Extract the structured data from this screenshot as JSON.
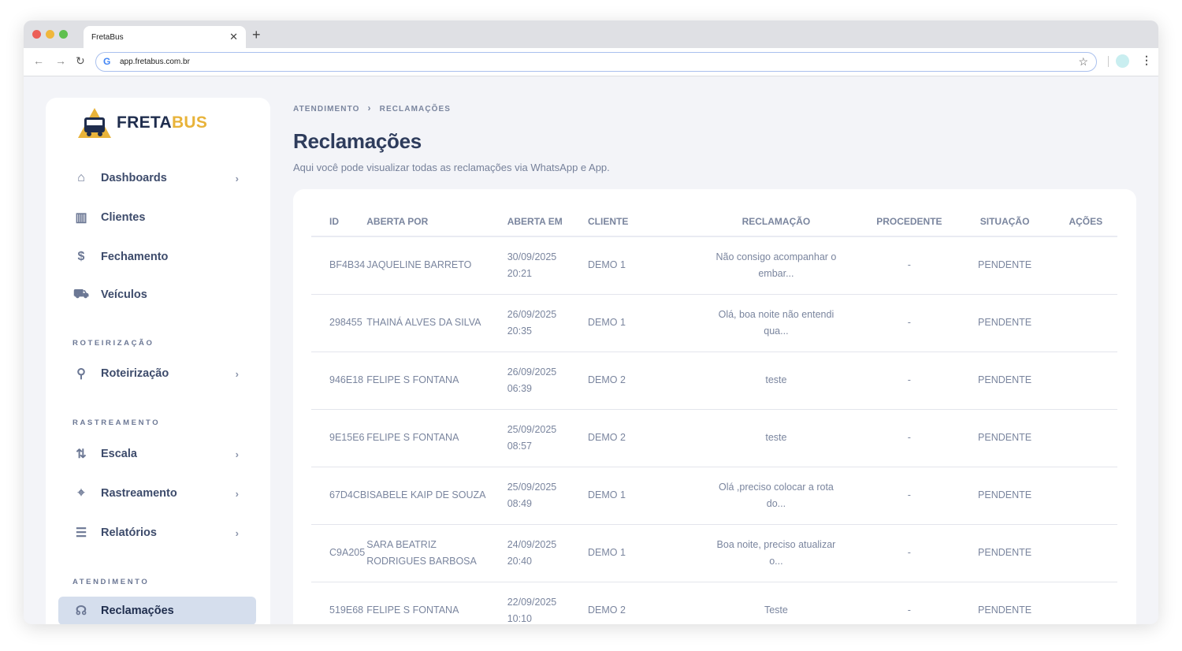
{
  "browser": {
    "tab_title": "FretaBus",
    "url": "app.fretabus.com.br"
  },
  "logo": {
    "text_a": "FRETA",
    "text_b": "BUS"
  },
  "sidebar": {
    "items": [
      {
        "label": "Dashboards",
        "icon": "home-icon",
        "chevron": true
      },
      {
        "label": "Clientes",
        "icon": "building-icon",
        "chevron": false
      },
      {
        "label": "Fechamento",
        "icon": "dollar-icon",
        "chevron": false
      },
      {
        "label": "Veículos",
        "icon": "vehicles-icon",
        "chevron": false
      }
    ],
    "sections": [
      {
        "title": "ROTEIRIZAÇÃO",
        "items": [
          {
            "label": "Roteirização",
            "icon": "route-icon"
          }
        ]
      },
      {
        "title": "RASTREAMENTO",
        "items": [
          {
            "label": "Escala",
            "icon": "repeat-icon"
          },
          {
            "label": "Rastreamento",
            "icon": "location-icon"
          },
          {
            "label": "Relatórios",
            "icon": "report-icon"
          }
        ]
      },
      {
        "title": "ATENDIMENTO",
        "items": [
          {
            "label": "Reclamações",
            "icon": "support-icon"
          }
        ]
      }
    ]
  },
  "breadcrumb": [
    "ATENDIMENTO",
    "RECLAMAÇÕES"
  ],
  "page": {
    "title": "Reclamações",
    "subtitle": "Aqui você pode visualizar todas as reclamações via WhatsApp e App."
  },
  "table": {
    "headers": [
      "ID",
      "ABERTA POR",
      "ABERTA EM",
      "CLIENTE",
      "RECLAMAÇÃO",
      "PROCEDENTE",
      "SITUAÇÃO",
      "AÇÕES"
    ],
    "rows": [
      {
        "id": "BF4B34",
        "by": "JAQUELINE BARRETO",
        "date": "30/09/2025",
        "time": "20:21",
        "client": "DEMO 1",
        "text": "Não consigo acompanhar o embar...",
        "proc": "-",
        "status": "PENDENTE"
      },
      {
        "id": "298455",
        "by": "THAINÁ ALVES DA SILVA",
        "date": "26/09/2025",
        "time": "20:35",
        "client": "DEMO 1",
        "text": "Olá, boa noite não entendi qua...",
        "proc": "-",
        "status": "PENDENTE"
      },
      {
        "id": "946E18",
        "by": "FELIPE S FONTANA",
        "date": "26/09/2025",
        "time": "06:39",
        "client": "DEMO 2",
        "text": "teste",
        "proc": "-",
        "status": "PENDENTE"
      },
      {
        "id": "9E15E6",
        "by": "FELIPE S FONTANA",
        "date": "25/09/2025",
        "time": "08:57",
        "client": "DEMO 2",
        "text": "teste",
        "proc": "-",
        "status": "PENDENTE"
      },
      {
        "id": "67D4CB",
        "by": "ISABELE KAIP DE SOUZA",
        "date": "25/09/2025",
        "time": "08:49",
        "client": "DEMO 1",
        "text": "Olá ,preciso colocar a rota do...",
        "proc": "-",
        "status": "PENDENTE"
      },
      {
        "id": "C9A205",
        "by": "SARA BEATRIZ RODRIGUES BARBOSA",
        "date": "24/09/2025",
        "time": "20:40",
        "client": "DEMO 1",
        "text": "Boa noite, preciso atualizar o...",
        "proc": "-",
        "status": "PENDENTE"
      },
      {
        "id": "519E68",
        "by": "FELIPE S FONTANA",
        "date": "22/09/2025",
        "time": "10:10",
        "client": "DEMO 2",
        "text": "Teste",
        "proc": "-",
        "status": "PENDENTE"
      }
    ]
  }
}
